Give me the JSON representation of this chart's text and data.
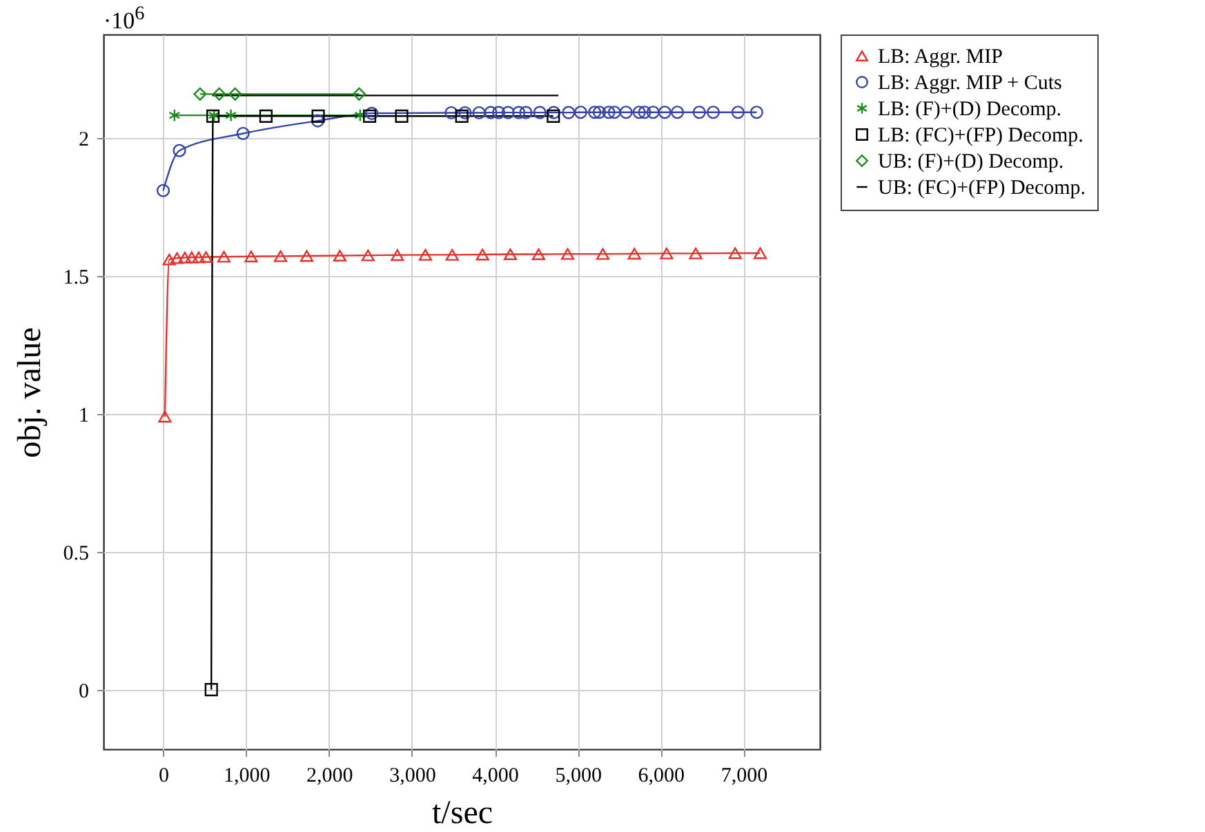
{
  "chart_data": {
    "type": "line",
    "xlabel": "t/sec",
    "ylabel": "obj. value",
    "annotations": [
      "·10$^{6}$"
    ],
    "xlim": [
      -720,
      7920
    ],
    "ylim": [
      -0.216,
      2.376
    ],
    "xticks": [
      0,
      {
        "value": 1000,
        "label": "1,000"
      },
      {
        "value": 2000,
        "label": "2,000"
      },
      {
        "value": 3000,
        "label": "3,000"
      },
      {
        "value": 4000,
        "label": "4,000"
      },
      {
        "value": 5000,
        "label": "5,000"
      },
      {
        "value": 6000,
        "label": "6,000"
      },
      {
        "value": 7000,
        "label": "7,000"
      }
    ],
    "yticks": [
      0,
      0.5,
      1,
      1.5,
      2
    ],
    "grid": true,
    "legend": "top right",
    "line_style": "solid",
    "series": [
      {
        "name": "LB: Aggr. MIP",
        "color": "#e8302a",
        "marker": "triangle",
        "x": [
          20,
          73,
          166,
          261,
          344,
          428,
          516,
          732,
          1060,
          1415,
          1731,
          2130,
          2470,
          2824,
          3162,
          3485,
          3851,
          4187,
          4527,
          4878,
          5302,
          5682,
          6071,
          6422,
          6898,
          7200
        ],
        "values": [
          0.99,
          1.56,
          1.565,
          1.567,
          1.568,
          1.568,
          1.569,
          1.57,
          1.571,
          1.572,
          1.573,
          1.574,
          1.575,
          1.576,
          1.577,
          1.577,
          1.578,
          1.579,
          1.579,
          1.58,
          1.58,
          1.581,
          1.582,
          1.582,
          1.583,
          1.583
        ]
      },
      {
        "name": "LB: Aggr. MIP + Cuts",
        "color": "#3344aa",
        "marker": "circle",
        "x": [
          0,
          196,
          963,
          1863,
          2516,
          3474,
          3640,
          3809,
          3950,
          4046,
          4159,
          4288,
          4373,
          4542,
          4710,
          4889,
          5035,
          5204,
          5260,
          5373,
          5442,
          5582,
          5740,
          5806,
          5908,
          6049,
          6201,
          6465,
          6634,
          6932,
          7157
        ],
        "values": [
          1.81,
          1.955,
          2.017,
          2.063,
          2.09,
          2.092,
          2.092,
          2.092,
          2.093,
          2.093,
          2.093,
          2.093,
          2.093,
          2.093,
          2.093,
          2.093,
          2.094,
          2.094,
          2.094,
          2.094,
          2.094,
          2.094,
          2.094,
          2.094,
          2.094,
          2.094,
          2.094,
          2.094,
          2.094,
          2.094,
          2.094
        ]
      },
      {
        "name": "LB: (F)+(D) Decomp.",
        "color": "#1a8c1a",
        "marker": "cross",
        "x": [
          136,
          614,
          817,
          2375
        ],
        "values": [
          2.083,
          2.083,
          2.083,
          2.083
        ]
      },
      {
        "name": "LB: (FC)+(FP) Decomp.",
        "color": "#000000",
        "marker": "square",
        "x": [
          580,
          600,
          1239,
          1869,
          2489,
          2876,
          3601,
          4705
        ],
        "values": [
          0,
          2.08,
          2.08,
          2.08,
          2.08,
          2.08,
          2.08,
          2.08
        ]
      },
      {
        "name": "UB: (F)+(D) Decomp.",
        "color": "#1a8c1a",
        "marker": "diamond",
        "x": [
          444,
          676,
          867,
          2363
        ],
        "values": [
          2.16,
          2.16,
          2.16,
          2.16
        ]
      },
      {
        "name": "UB: (FC)+(FP) Decomp.",
        "color": "#000000",
        "marker": "none",
        "x": [
          591,
          4766
        ],
        "values": [
          2.155,
          2.155
        ]
      }
    ]
  }
}
